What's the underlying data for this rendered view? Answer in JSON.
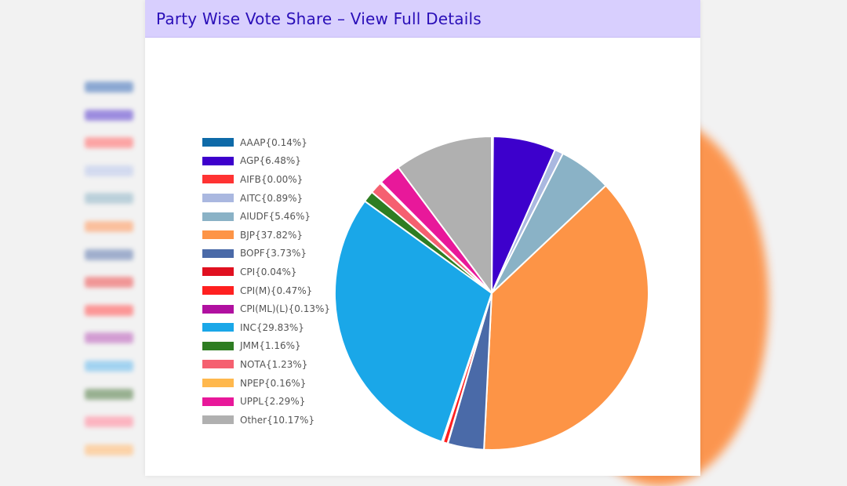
{
  "header": {
    "title": "Party Wise Vote Share – View Full Details"
  },
  "chart_data": {
    "type": "pie",
    "categories": [
      "AAAP",
      "AGP",
      "AIFB",
      "AITC",
      "AIUDF",
      "BJP",
      "BOPF",
      "CPI",
      "CPI(M)",
      "CPI(ML)(L)",
      "INC",
      "JMM",
      "NOTA",
      "NPEP",
      "UPPL",
      "Other"
    ],
    "values": [
      0.14,
      6.48,
      0.0,
      0.89,
      5.46,
      37.82,
      3.73,
      0.04,
      0.47,
      0.13,
      29.83,
      1.16,
      1.23,
      0.16,
      2.29,
      10.17
    ],
    "legend_labels": [
      "AAAP{0.14%}",
      "AGP{6.48%}",
      "AIFB{0.00%}",
      "AITC{0.89%}",
      "AIUDF{5.46%}",
      "BJP{37.82%}",
      "BOPF{3.73%}",
      "CPI{0.04%}",
      "CPI(M){0.47%}",
      "CPI(ML)(L){0.13%}",
      "INC{29.83%}",
      "JMM{1.16%}",
      "NOTA{1.23%}",
      "NPEP{0.16%}",
      "UPPL{2.29%}",
      "Other{10.17%}"
    ],
    "colors": [
      "#0e6aa8",
      "#3d00cc",
      "#ff3333",
      "#aab8e0",
      "#8ab2c6",
      "#fd9446",
      "#4a6aa8",
      "#e01020",
      "#ff2020",
      "#b010a0",
      "#1aa7e8",
      "#2e7d22",
      "#f56070",
      "#ffb84d",
      "#e8189a",
      "#b0b0b0"
    ],
    "legend_position": "left"
  }
}
